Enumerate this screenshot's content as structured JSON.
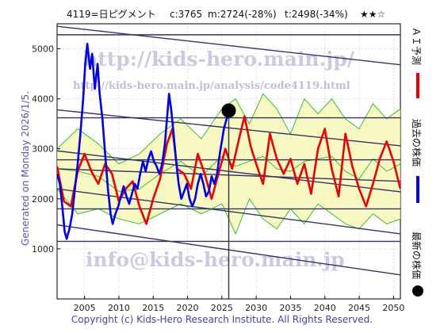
{
  "header": {
    "code_name": "4119=日ピグメント",
    "current": "c:3765",
    "m_value": "m:2724(-28%)",
    "t_value": "t:2498(-34%)",
    "stars": "★★☆"
  },
  "side_legend": {
    "forecast": "ＡＩ予測",
    "past": "過去の株価",
    "latest": "最新の株価"
  },
  "watermarks": {
    "url_main": "http://kids-hero.main.jp/",
    "url_analysis": "http://kids-hero.main.jp/analysis/code4119.html",
    "email": "info@kids-hero.main.jp"
  },
  "generated": "Generated on Monday 2026/1/5.",
  "copyright": "Copyright (c) Kids-Hero Research Institute. All Rights Reserved.",
  "colors": {
    "past": "#0000ee",
    "forecast": "#ee0000",
    "band_fill": "#f3f5a8",
    "band_line": "#22bb22",
    "trend": "#333366",
    "latest": "#000000"
  },
  "chart_data": {
    "type": "line",
    "xlim": [
      2001,
      2051
    ],
    "ylim": [
      0,
      5500
    ],
    "x_ticks": [
      2005,
      2010,
      2015,
      2020,
      2025,
      2030,
      2035,
      2040,
      2045,
      2050
    ],
    "y_ticks": [
      1000,
      2000,
      3000,
      4000,
      5000
    ],
    "latest_point": {
      "x": 2026.0,
      "y": 3765
    },
    "latest_vline_x": 2026.0,
    "past": {
      "name": "過去の株価",
      "points": [
        [
          2001.0,
          2500
        ],
        [
          2001.4,
          2300
        ],
        [
          2001.8,
          1800
        ],
        [
          2002.1,
          1350
        ],
        [
          2002.4,
          1200
        ],
        [
          2002.8,
          1400
        ],
        [
          2003.2,
          1700
        ],
        [
          2003.6,
          2200
        ],
        [
          2004.0,
          2700
        ],
        [
          2004.4,
          3300
        ],
        [
          2004.8,
          4000
        ],
        [
          2005.1,
          4700
        ],
        [
          2005.4,
          5100
        ],
        [
          2005.8,
          4600
        ],
        [
          2006.1,
          4900
        ],
        [
          2006.5,
          4200
        ],
        [
          2006.9,
          4700
        ],
        [
          2007.2,
          4100
        ],
        [
          2007.6,
          3600
        ],
        [
          2008.0,
          2900
        ],
        [
          2008.4,
          2200
        ],
        [
          2008.8,
          1700
        ],
        [
          2009.1,
          1500
        ],
        [
          2009.5,
          1700
        ],
        [
          2009.9,
          1850
        ],
        [
          2010.3,
          2050
        ],
        [
          2010.7,
          2250
        ],
        [
          2011.1,
          2050
        ],
        [
          2011.5,
          1900
        ],
        [
          2011.9,
          2100
        ],
        [
          2012.3,
          2300
        ],
        [
          2012.7,
          2200
        ],
        [
          2013.1,
          2500
        ],
        [
          2013.5,
          2750
        ],
        [
          2013.9,
          2550
        ],
        [
          2014.3,
          2800
        ],
        [
          2014.7,
          2950
        ],
        [
          2015.1,
          2750
        ],
        [
          2015.5,
          2650
        ],
        [
          2015.9,
          2500
        ],
        [
          2016.3,
          2700
        ],
        [
          2016.7,
          3100
        ],
        [
          2017.0,
          3600
        ],
        [
          2017.3,
          4100
        ],
        [
          2017.6,
          3800
        ],
        [
          2017.9,
          3400
        ],
        [
          2018.3,
          2800
        ],
        [
          2018.7,
          2300
        ],
        [
          2019.1,
          2000
        ],
        [
          2019.5,
          2150
        ],
        [
          2019.9,
          2300
        ],
        [
          2020.3,
          2000
        ],
        [
          2020.7,
          1850
        ],
        [
          2021.1,
          2000
        ],
        [
          2021.5,
          2300
        ],
        [
          2021.9,
          2500
        ],
        [
          2022.3,
          2300
        ],
        [
          2022.7,
          2050
        ],
        [
          2023.1,
          2150
        ],
        [
          2023.5,
          2450
        ],
        [
          2023.9,
          2300
        ],
        [
          2024.3,
          2500
        ],
        [
          2024.7,
          2900
        ],
        [
          2025.0,
          3150
        ],
        [
          2025.3,
          3400
        ],
        [
          2025.6,
          3550
        ],
        [
          2026.0,
          3765
        ]
      ]
    },
    "forecast": {
      "name": "ＡＩ予測",
      "points": [
        [
          2001.0,
          2650
        ],
        [
          2002.0,
          1950
        ],
        [
          2003.0,
          1850
        ],
        [
          2004.0,
          2550
        ],
        [
          2005.0,
          2900
        ],
        [
          2006.0,
          2550
        ],
        [
          2007.0,
          2300
        ],
        [
          2008.0,
          2700
        ],
        [
          2009.0,
          2500
        ],
        [
          2010.0,
          1950
        ],
        [
          2011.0,
          2200
        ],
        [
          2012.0,
          2350
        ],
        [
          2013.0,
          1850
        ],
        [
          2014.0,
          1500
        ],
        [
          2015.0,
          2000
        ],
        [
          2016.0,
          2400
        ],
        [
          2017.0,
          3100
        ],
        [
          2017.8,
          3400
        ],
        [
          2018.5,
          2600
        ],
        [
          2019.5,
          2500
        ],
        [
          2020.5,
          2200
        ],
        [
          2021.5,
          2900
        ],
        [
          2022.5,
          2500
        ],
        [
          2023.5,
          2000
        ],
        [
          2024.5,
          2500
        ],
        [
          2025.5,
          3000
        ],
        [
          2026.5,
          2600
        ],
        [
          2027.5,
          3200
        ],
        [
          2028.3,
          3650
        ],
        [
          2029.2,
          3050
        ],
        [
          2030.0,
          2700
        ],
        [
          2031.0,
          2300
        ],
        [
          2032.0,
          3300
        ],
        [
          2033.0,
          2800
        ],
        [
          2034.0,
          2500
        ],
        [
          2035.0,
          2800
        ],
        [
          2036.0,
          2300
        ],
        [
          2037.0,
          2700
        ],
        [
          2038.0,
          2100
        ],
        [
          2039.0,
          3000
        ],
        [
          2040.0,
          3400
        ],
        [
          2041.0,
          2600
        ],
        [
          2042.0,
          2050
        ],
        [
          2043.0,
          3300
        ],
        [
          2044.0,
          2650
        ],
        [
          2045.0,
          2200
        ],
        [
          2046.0,
          1850
        ],
        [
          2047.0,
          2300
        ],
        [
          2048.0,
          2800
        ],
        [
          2049.0,
          3150
        ],
        [
          2050.0,
          2750
        ],
        [
          2051.0,
          2200
        ]
      ]
    },
    "band": {
      "upper": [
        [
          2001,
          3000
        ],
        [
          2004,
          3400
        ],
        [
          2007,
          3100
        ],
        [
          2010,
          2700
        ],
        [
          2013,
          2900
        ],
        [
          2016,
          3300
        ],
        [
          2019,
          3600
        ],
        [
          2022,
          3200
        ],
        [
          2025,
          3800
        ],
        [
          2027,
          4000
        ],
        [
          2029,
          3500
        ],
        [
          2031,
          4100
        ],
        [
          2033,
          3800
        ],
        [
          2035,
          3300
        ],
        [
          2037,
          4000
        ],
        [
          2039,
          3700
        ],
        [
          2041,
          4000
        ],
        [
          2043,
          3600
        ],
        [
          2045,
          3400
        ],
        [
          2047,
          3900
        ],
        [
          2049,
          3600
        ],
        [
          2051,
          3800
        ]
      ],
      "lower": [
        [
          2001,
          2200
        ],
        [
          2004,
          1700
        ],
        [
          2007,
          1800
        ],
        [
          2010,
          1600
        ],
        [
          2013,
          1500
        ],
        [
          2016,
          1700
        ],
        [
          2019,
          1900
        ],
        [
          2022,
          1700
        ],
        [
          2025,
          1900
        ],
        [
          2027,
          1300
        ],
        [
          2029,
          2000
        ],
        [
          2031,
          1600
        ],
        [
          2033,
          1400
        ],
        [
          2035,
          1800
        ],
        [
          2037,
          1500
        ],
        [
          2039,
          1900
        ],
        [
          2041,
          1700
        ],
        [
          2043,
          1500
        ],
        [
          2045,
          1400
        ],
        [
          2047,
          1700
        ],
        [
          2049,
          1500
        ],
        [
          2051,
          1600
        ]
      ]
    },
    "trend_lines": [
      {
        "x": [
          2001,
          2051
        ],
        "y": [
          5280,
          5280
        ]
      },
      {
        "x": [
          2001,
          2051
        ],
        "y": [
          5450,
          4680
        ]
      },
      {
        "x": [
          2001,
          2051
        ],
        "y": [
          3780,
          3060
        ]
      },
      {
        "x": [
          2001,
          2051
        ],
        "y": [
          3620,
          3620
        ]
      },
      {
        "x": [
          2001,
          2051
        ],
        "y": [
          2960,
          2140
        ]
      },
      {
        "x": [
          2001,
          2051
        ],
        "y": [
          2780,
          2780
        ]
      },
      {
        "x": [
          2001,
          2051
        ],
        "y": [
          2600,
          2350
        ]
      },
      {
        "x": [
          2001,
          2051
        ],
        "y": [
          2200,
          1300
        ]
      },
      {
        "x": [
          2001,
          2051
        ],
        "y": [
          1800,
          1800
        ]
      },
      {
        "x": [
          2001,
          2051
        ],
        "y": [
          1150,
          1150
        ]
      },
      {
        "x": [
          2001,
          2051
        ],
        "y": [
          1480,
          480
        ]
      }
    ]
  }
}
